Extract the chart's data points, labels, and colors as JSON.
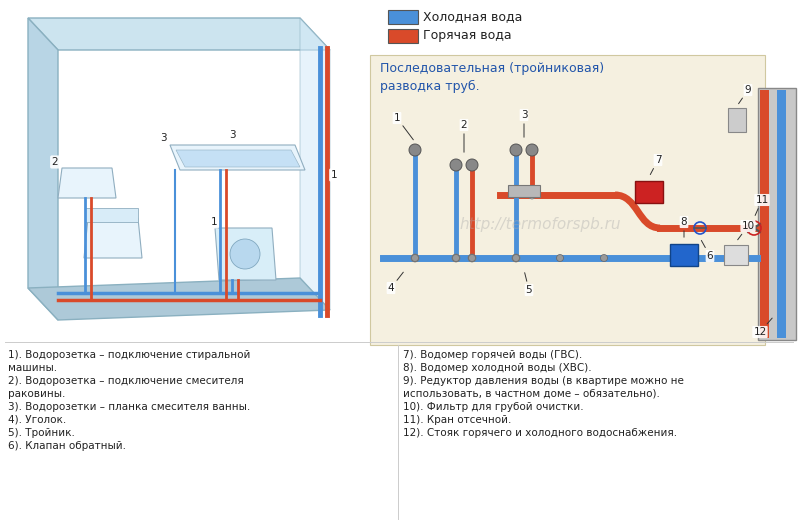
{
  "bg_color": "#ffffff",
  "cold_color": "#4a90d9",
  "hot_color": "#d94a2a",
  "right_panel_bg": "#f5f0e0",
  "right_panel_border": "#d0c8a0",
  "legend_cold": "Холодная вода",
  "legend_hot": "Горячая вода",
  "diagram_title": "Последовательная (тройниковая)\nразводка труб.",
  "watermark": "http://termoforspb.ru",
  "items_left": [
    "1). Водорозетка – подключение стиральной",
    "машины.",
    "2). Водорозетка – подключение смесителя",
    "раковины.",
    "3). Водорозетки – планка смесителя ванны.",
    "4). Уголок.",
    "5). Тройник.",
    "6). Клапан обратный."
  ],
  "items_right": [
    "7). Водомер горячей воды (ГВС).",
    "8). Водомер холодной воды (ХВС).",
    "9). Редуктор давления воды (в квартире можно не",
    "использовать, в частном доме – обязательно).",
    "10). Фильтр для грубой очистки.",
    "11). Кран отсечной.",
    "12). Стояк горячего и холодного водоснабжения."
  ]
}
